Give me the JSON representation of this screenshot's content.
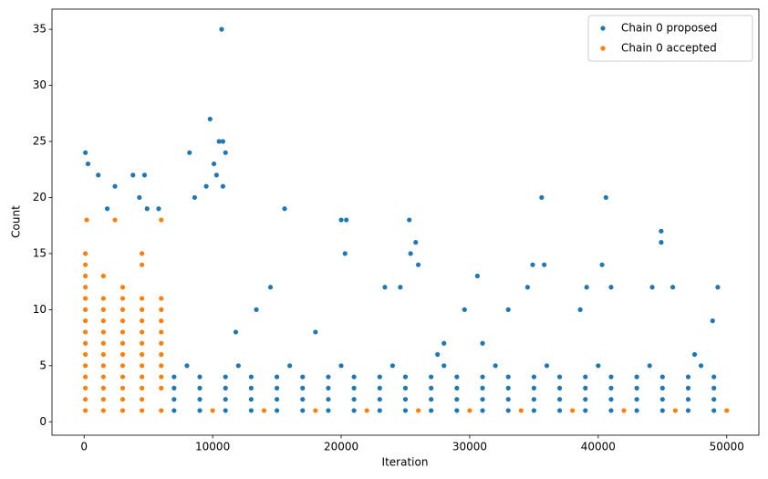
{
  "chart_data": {
    "type": "scatter",
    "xlabel": "Iteration",
    "ylabel": "Count",
    "xlim": [
      -2500,
      52500
    ],
    "ylim": [
      -1.2,
      36.8
    ],
    "xticks": [
      0,
      10000,
      20000,
      30000,
      40000,
      50000
    ],
    "yticks": [
      0,
      5,
      10,
      15,
      20,
      25,
      30,
      35
    ],
    "legend": "upper right",
    "grid": false,
    "series": [
      {
        "name": "Chain 0 proposed",
        "color": "#1f77b4",
        "x": [
          7000,
          7000,
          7000,
          7000,
          9000,
          9000,
          9000,
          9000,
          11000,
          11000,
          11000,
          11000,
          13000,
          13000,
          13000,
          13000,
          15000,
          15000,
          15000,
          15000,
          17000,
          17000,
          17000,
          17000,
          19000,
          19000,
          19000,
          19000,
          21000,
          21000,
          21000,
          21000,
          23000,
          23000,
          23000,
          23000,
          25000,
          25000,
          25000,
          25000,
          27000,
          27000,
          27000,
          27000,
          29000,
          29000,
          29000,
          29000,
          31000,
          31000,
          31000,
          31000,
          33000,
          33000,
          33000,
          33000,
          35000,
          35000,
          35000,
          35000,
          37000,
          37000,
          37000,
          37000,
          39000,
          39000,
          39000,
          39000,
          41000,
          41000,
          41000,
          41000,
          43000,
          43000,
          43000,
          43000,
          45000,
          45000,
          45000,
          45000,
          47000,
          47000,
          47000,
          47000,
          49000,
          49000,
          49000,
          49000,
          8000,
          12000,
          16000,
          20000,
          24000,
          28000,
          32000,
          36000,
          40000,
          44000,
          48000,
          10700,
          9800,
          10500,
          10800,
          100,
          8200,
          11000,
          300,
          10100,
          1100,
          3800,
          4700,
          10300,
          2400,
          9500,
          10800,
          4300,
          8600,
          35600,
          40600,
          15600,
          20000,
          20400,
          25300,
          44900,
          44900,
          25800,
          20300,
          25400,
          26000,
          34900,
          35800,
          40300,
          30600,
          14500,
          23400,
          24600,
          34500,
          39100,
          41000,
          44200,
          45800,
          49300,
          13400,
          29600,
          33000,
          38600,
          48900,
          11800,
          18000,
          28000,
          31000,
          27500,
          47500,
          1800,
          4900,
          5800
        ],
        "values": [
          1,
          2,
          3,
          4,
          1,
          2,
          3,
          4,
          1,
          2,
          3,
          4,
          1,
          2,
          3,
          4,
          1,
          2,
          3,
          4,
          1,
          2,
          3,
          4,
          1,
          2,
          3,
          4,
          1,
          2,
          3,
          4,
          1,
          2,
          3,
          4,
          1,
          2,
          3,
          4,
          1,
          2,
          3,
          4,
          1,
          2,
          3,
          4,
          1,
          2,
          3,
          4,
          1,
          2,
          3,
          4,
          1,
          2,
          3,
          4,
          1,
          2,
          3,
          4,
          1,
          2,
          3,
          4,
          1,
          2,
          3,
          4,
          1,
          2,
          3,
          4,
          1,
          2,
          3,
          4,
          1,
          2,
          3,
          4,
          1,
          2,
          3,
          4,
          5,
          5,
          5,
          5,
          5,
          5,
          5,
          5,
          5,
          5,
          5,
          35,
          27,
          25,
          25,
          24,
          24,
          24,
          23,
          23,
          22,
          22,
          22,
          22,
          21,
          21,
          21,
          20,
          20,
          20,
          20,
          19,
          18,
          18,
          18,
          17,
          16,
          16,
          15,
          15,
          14,
          14,
          14,
          14,
          13,
          12,
          12,
          12,
          12,
          12,
          12,
          12,
          12,
          12,
          10,
          10,
          10,
          10,
          9,
          8,
          8,
          7,
          7,
          6,
          6,
          19,
          19,
          19
        ]
      },
      {
        "name": "Chain 0 accepted",
        "color": "#ff7f0e",
        "x": [
          100,
          100,
          100,
          100,
          100,
          100,
          100,
          100,
          100,
          100,
          100,
          100,
          100,
          100,
          100,
          1500,
          1500,
          1500,
          1500,
          1500,
          1500,
          1500,
          1500,
          1500,
          1500,
          1500,
          1500,
          3000,
          3000,
          3000,
          3000,
          3000,
          3000,
          3000,
          3000,
          3000,
          3000,
          3000,
          3000,
          4500,
          4500,
          4500,
          4500,
          4500,
          4500,
          4500,
          4500,
          4500,
          4500,
          4500,
          4500,
          4500,
          6000,
          6000,
          6000,
          6000,
          6000,
          6000,
          6000,
          6000,
          6000,
          6000,
          200,
          2400,
          6000,
          10000,
          14000,
          18000,
          22000,
          26000,
          30000,
          34000,
          38000,
          42000,
          46000,
          50000
        ],
        "values": [
          1,
          2,
          3,
          4,
          5,
          6,
          7,
          8,
          9,
          10,
          11,
          12,
          13,
          14,
          15,
          1,
          2,
          3,
          4,
          5,
          6,
          7,
          8,
          9,
          10,
          11,
          13,
          1,
          2,
          3,
          4,
          5,
          6,
          7,
          8,
          9,
          10,
          11,
          12,
          1,
          2,
          3,
          4,
          5,
          6,
          7,
          8,
          9,
          10,
          11,
          14,
          15,
          1,
          3,
          4,
          5,
          6,
          7,
          8,
          9,
          10,
          11,
          18,
          18,
          18,
          1,
          1,
          1,
          1,
          1,
          1,
          1,
          1,
          1,
          1,
          1
        ]
      }
    ]
  }
}
